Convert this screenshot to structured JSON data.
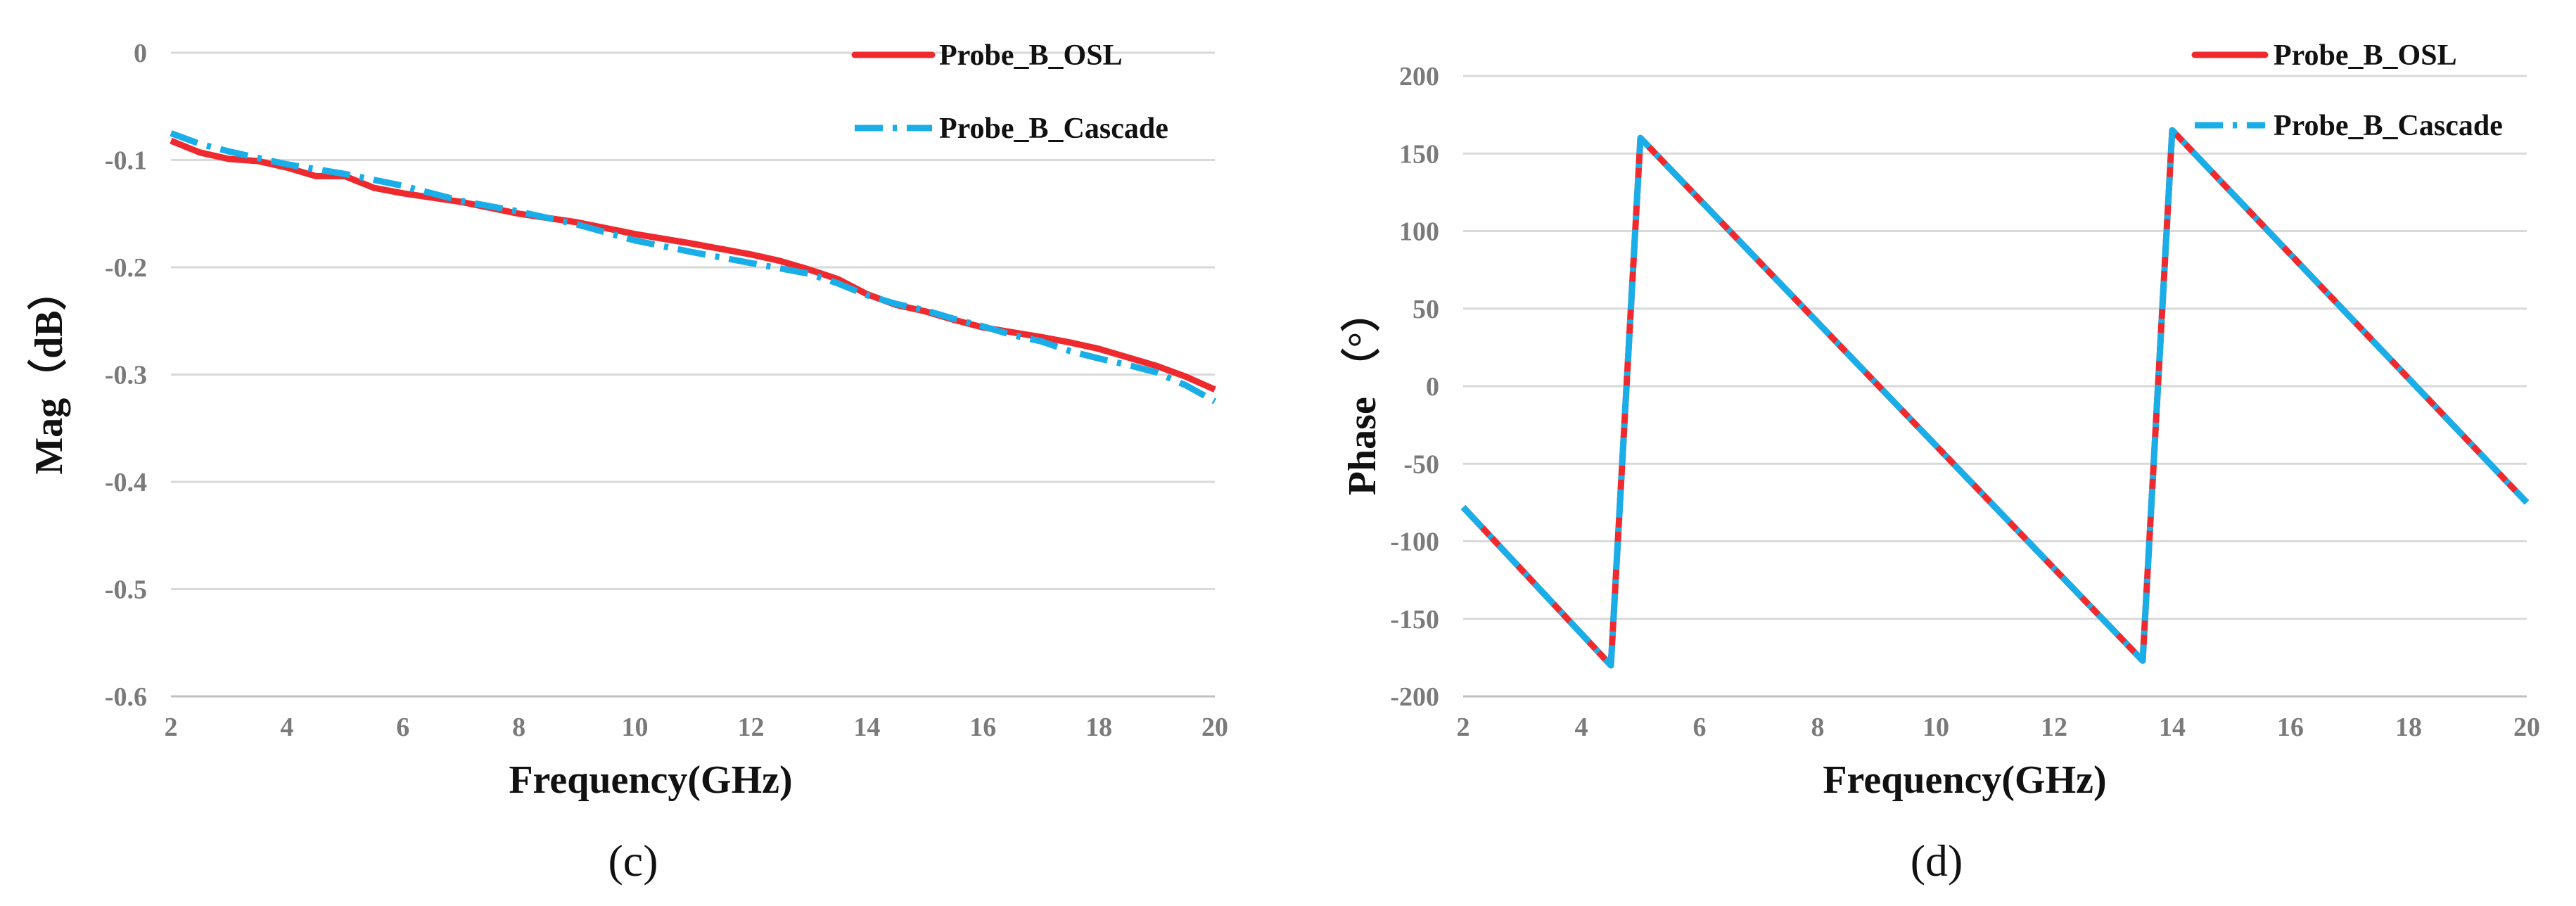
{
  "colors": {
    "osl": "#ee2a2e",
    "cascade": "#1aaee9",
    "grid": "#d9d9d9",
    "axis": "#bfbfbf"
  },
  "chart_data": [
    {
      "type": "line",
      "caption": "(c)",
      "xlabel": "Frequency(GHz)",
      "ylabel": "Mag（dB）",
      "xlim": [
        2,
        20
      ],
      "ylim": [
        -0.6,
        0
      ],
      "xticks": [
        2,
        4,
        6,
        8,
        10,
        12,
        14,
        16,
        18,
        20
      ],
      "yticks": [
        0,
        -0.1,
        -0.2,
        -0.3,
        -0.4,
        -0.5,
        -0.6
      ],
      "xtick_labels": [
        "2",
        "4",
        "6",
        "8",
        "10",
        "12",
        "14",
        "16",
        "18",
        "20"
      ],
      "ytick_labels": [
        "0",
        "-0.1",
        "-0.2",
        "-0.3",
        "-0.4",
        "-0.5",
        "-0.6"
      ],
      "grid": "horizontal",
      "legend_position": "top-right",
      "series": [
        {
          "name": "Probe_B_OSL",
          "style": "solid",
          "x": [
            2,
            2.5,
            3,
            3.5,
            4,
            4.5,
            5,
            5.5,
            6,
            7,
            8,
            9,
            10,
            11,
            12,
            12.5,
            13,
            13.5,
            14,
            14.5,
            15,
            15.5,
            16,
            17,
            17.5,
            18,
            18.5,
            19,
            19.5,
            20
          ],
          "values": [
            -0.082,
            -0.093,
            -0.099,
            -0.101,
            -0.107,
            -0.115,
            -0.115,
            -0.126,
            -0.131,
            -0.139,
            -0.15,
            -0.158,
            -0.169,
            -0.178,
            -0.188,
            -0.194,
            -0.202,
            -0.211,
            -0.225,
            -0.235,
            -0.241,
            -0.249,
            -0.256,
            -0.265,
            -0.27,
            -0.276,
            -0.284,
            -0.292,
            -0.302,
            -0.314
          ]
        },
        {
          "name": "Probe_B_Cascade",
          "style": "dash-dot",
          "x": [
            2,
            2.5,
            3,
            3.5,
            4,
            5,
            6,
            7,
            8,
            9,
            10,
            11,
            12,
            13,
            13.5,
            14,
            14.5,
            15,
            15.5,
            16,
            16.5,
            17,
            17.5,
            18,
            18.5,
            19,
            19.5,
            20
          ],
          "values": [
            -0.075,
            -0.085,
            -0.092,
            -0.098,
            -0.104,
            -0.113,
            -0.124,
            -0.138,
            -0.148,
            -0.16,
            -0.175,
            -0.186,
            -0.196,
            -0.206,
            -0.215,
            -0.226,
            -0.234,
            -0.24,
            -0.248,
            -0.255,
            -0.263,
            -0.269,
            -0.278,
            -0.285,
            -0.291,
            -0.298,
            -0.31,
            -0.325
          ]
        }
      ]
    },
    {
      "type": "line",
      "caption": "(d)",
      "xlabel": "Frequency(GHz)",
      "ylabel": "Phase （°）",
      "xlim": [
        2,
        20
      ],
      "ylim": [
        -200,
        200
      ],
      "xticks": [
        2,
        4,
        6,
        8,
        10,
        12,
        14,
        16,
        18,
        20
      ],
      "yticks": [
        200,
        150,
        100,
        50,
        0,
        -50,
        -100,
        -150,
        -200
      ],
      "xtick_labels": [
        "2",
        "4",
        "6",
        "8",
        "10",
        "12",
        "14",
        "16",
        "18",
        "20"
      ],
      "ytick_labels": [
        "200",
        "150",
        "100",
        "50",
        "0",
        "-50",
        "-100",
        "-150",
        "-200"
      ],
      "grid": "horizontal",
      "legend_position": "top-right",
      "series": [
        {
          "name": "Probe_B_OSL",
          "style": "solid",
          "x": [
            2,
            4.5,
            5.0,
            13.5,
            14.0,
            20
          ],
          "values": [
            -78,
            -180,
            160,
            -177,
            165,
            -75
          ]
        },
        {
          "name": "Probe_B_Cascade",
          "style": "dash-dot",
          "x": [
            2,
            4.5,
            5.0,
            13.5,
            14.0,
            20
          ],
          "values": [
            -78,
            -180,
            160,
            -177,
            165,
            -75
          ]
        }
      ]
    }
  ]
}
